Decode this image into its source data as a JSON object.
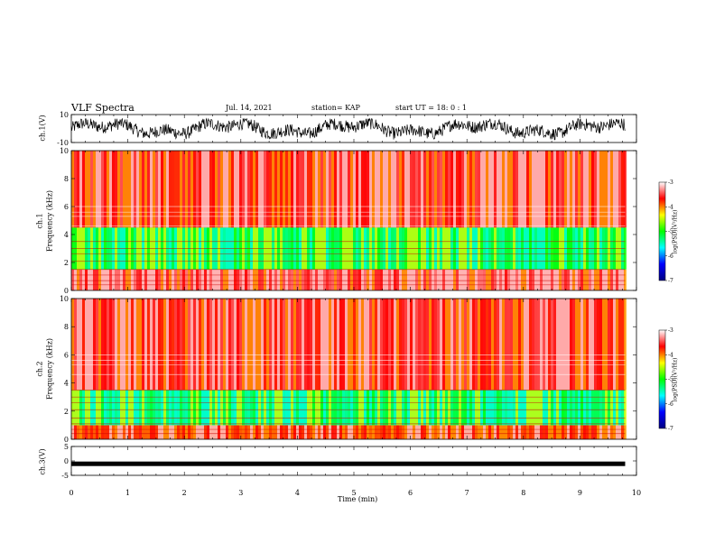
{
  "header": {
    "title": "VLF Spectra",
    "date": "Jul. 14, 2021",
    "station": "station= KAP",
    "start_ut": "start  UT =   18: 0  : 1"
  },
  "chart_data": [
    {
      "type": "line",
      "panel": "ch1-waveform",
      "ylabel": "ch.1(V)",
      "ylim": [
        -10,
        10
      ],
      "yticks": [
        "10",
        "-10"
      ],
      "xlim": [
        0,
        10
      ],
      "data_extent_min": [
        0,
        9.8
      ],
      "series": [
        {
          "description": "noisy voltage trace",
          "values_range": [
            -8,
            7
          ]
        }
      ]
    },
    {
      "type": "heatmap",
      "panel": "ch1-spectrogram",
      "ylabel_line1": "ch.1",
      "ylabel_line2": "Frequency  (kHz)",
      "ylim": [
        0,
        10
      ],
      "yticks": [
        "0",
        "2",
        "4",
        "6",
        "8",
        "10"
      ],
      "xlim": [
        0,
        10
      ],
      "data_extent_min": [
        0,
        9.8
      ],
      "bands_khz": [
        {
          "from": 0,
          "to": 1.5,
          "level": -3.5
        },
        {
          "from": 1.5,
          "to": 4.5,
          "level": -5.2
        },
        {
          "from": 4.5,
          "to": 10,
          "level": -3.6
        }
      ]
    },
    {
      "type": "heatmap",
      "panel": "ch2-spectrogram",
      "ylabel_line1": "ch.2",
      "ylabel_line2": "Frequency  (kHz)",
      "ylim": [
        0,
        10
      ],
      "yticks": [
        "0",
        "2",
        "4",
        "6",
        "8",
        "10"
      ],
      "xlim": [
        0,
        10
      ],
      "data_extent_min": [
        0,
        9.8
      ],
      "bands_khz": [
        {
          "from": 0,
          "to": 1.0,
          "level": -3.8
        },
        {
          "from": 1.0,
          "to": 3.5,
          "level": -5.3
        },
        {
          "from": 3.5,
          "to": 10,
          "level": -3.6
        }
      ]
    },
    {
      "type": "line",
      "panel": "ch3-waveform",
      "ylabel": "ch.3(V)",
      "ylim": [
        -5,
        5
      ],
      "yticks": [
        "5",
        "0",
        "-5"
      ],
      "xlim": [
        0,
        10
      ],
      "data_extent_min": [
        0,
        9.8
      ],
      "series": [
        {
          "description": "constant trace near -1 V",
          "value": -1
        }
      ]
    }
  ],
  "xaxis": {
    "label": "Time  (min)",
    "ticks": [
      "0",
      "1",
      "2",
      "3",
      "4",
      "5",
      "6",
      "7",
      "8",
      "9",
      "10"
    ]
  },
  "colorbar": {
    "label": "log(PSD)(V²/Hz)",
    "ticks": [
      "-3",
      "-4",
      "-5",
      "-6",
      "-7"
    ],
    "range": [
      -7,
      -3
    ],
    "colors": [
      "#000080",
      "#0000ff",
      "#00ffff",
      "#00ff00",
      "#ffff00",
      "#ff0000",
      "#ffffff"
    ]
  }
}
